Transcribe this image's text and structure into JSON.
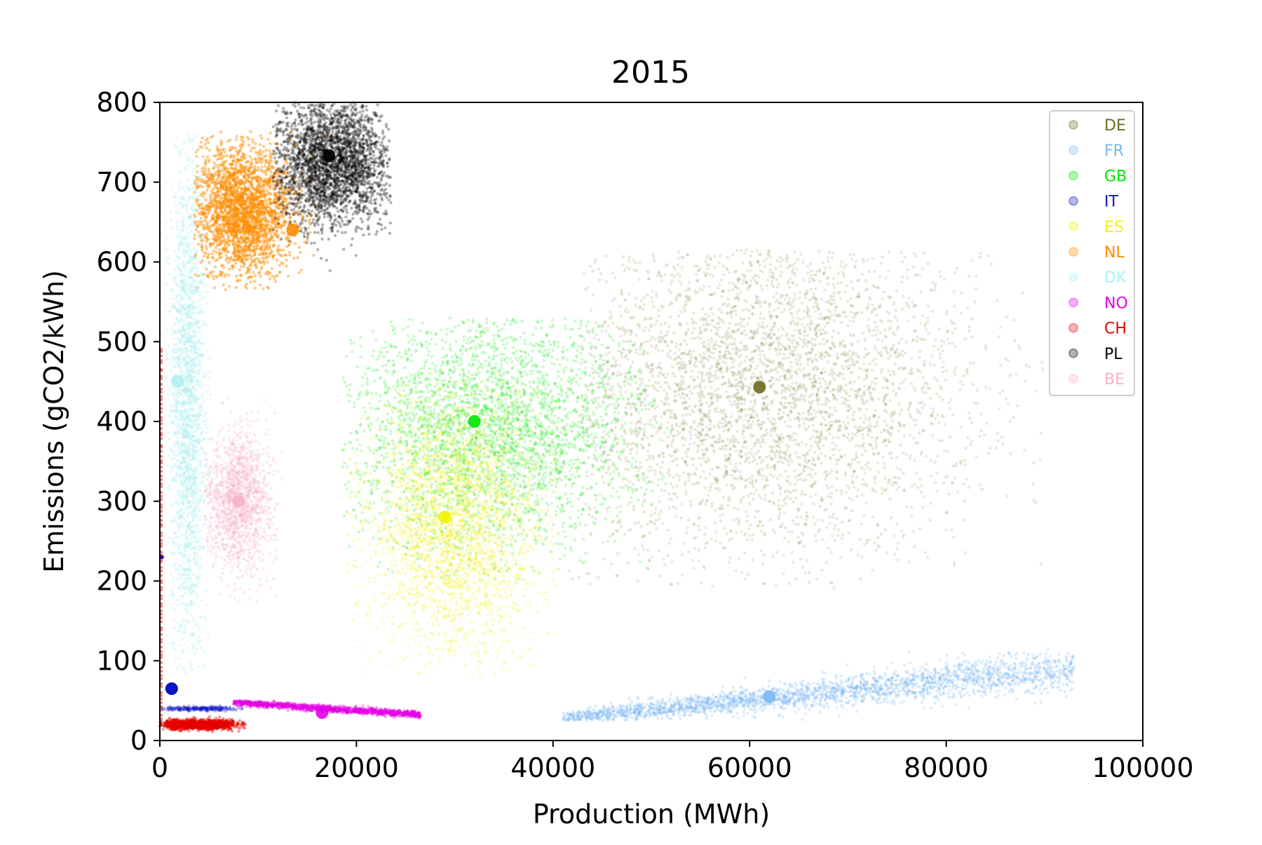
{
  "chart_data": {
    "type": "scatter",
    "title": "2015",
    "xlabel": "Production (MWh)",
    "ylabel": "Emissions (gCO2/kWh)",
    "xlim": [
      0,
      100000
    ],
    "ylim": [
      0,
      800
    ],
    "x_ticks": [
      "0",
      "20000",
      "40000",
      "60000",
      "80000",
      "100000"
    ],
    "y_ticks": [
      "0",
      "100",
      "200",
      "300",
      "400",
      "500",
      "600",
      "700",
      "800"
    ],
    "grid": false,
    "legend_position": "top-right",
    "series": [
      {
        "name": "DE",
        "color": "#6b6b1e",
        "alpha": 0.15,
        "n": 4500,
        "cx": 61000,
        "cy": 440,
        "sx": 11000,
        "sy": 105,
        "xmin": 43000,
        "xmax": 90000,
        "ymin": 190,
        "ymax": 615,
        "mean": [
          61000,
          443
        ],
        "dense": true
      },
      {
        "name": "FR",
        "color": "#7ab8f5",
        "alpha": 0.25,
        "n": 2500,
        "cx": 60000,
        "cy": 50,
        "sx": 9000,
        "sy": 14,
        "xmin": 41000,
        "xmax": 93000,
        "ymin": 25,
        "ymax": 115,
        "mean": [
          62000,
          55
        ],
        "trend": true
      },
      {
        "name": "GB",
        "color": "#00e600",
        "alpha": 0.2,
        "n": 3500,
        "cx": 34000,
        "cy": 390,
        "sx": 7500,
        "sy": 75,
        "xmin": 18500,
        "xmax": 52000,
        "ymin": 200,
        "ymax": 530,
        "mean": [
          32000,
          400
        ]
      },
      {
        "name": "IT",
        "color": "#0a14c8",
        "alpha": 0.25,
        "n": 300,
        "cx": 4000,
        "cy": 40,
        "sx": 2500,
        "sy": 1.5,
        "xmin": 0,
        "xmax": 8500,
        "ymin": 36,
        "ymax": 44,
        "mean": [
          1200,
          65
        ],
        "extra": [
          [
            200,
            230
          ]
        ]
      },
      {
        "name": "ES",
        "color": "#f2f200",
        "alpha": 0.2,
        "n": 3000,
        "cx": 30000,
        "cy": 270,
        "sx": 4500,
        "sy": 80,
        "xmin": 19000,
        "xmax": 40500,
        "ymin": 80,
        "ymax": 470,
        "mean": [
          29000,
          280
        ]
      },
      {
        "name": "NL",
        "color": "#ff8c00",
        "alpha": 0.45,
        "n": 2500,
        "cx": 8500,
        "cy": 665,
        "sx": 2600,
        "sy": 40,
        "xmin": 3500,
        "xmax": 17500,
        "ymin": 565,
        "ymax": 765,
        "mean": [
          13500,
          640
        ]
      },
      {
        "name": "DK",
        "color": "#aef0f0",
        "alpha": 0.3,
        "n": 2000,
        "cx": 2800,
        "cy": 420,
        "sx": 900,
        "sy": 160,
        "xmin": 500,
        "xmax": 5200,
        "ymin": 85,
        "ymax": 760,
        "mean": [
          1800,
          450
        ]
      },
      {
        "name": "NO",
        "color": "#e600e6",
        "alpha": 0.3,
        "n": 1500,
        "cx": 17000,
        "cy": 36,
        "sx": 4500,
        "sy": 3,
        "xmin": 7500,
        "xmax": 26500,
        "ymin": 28,
        "ymax": 50,
        "mean": [
          16500,
          35
        ],
        "trend_no": true
      },
      {
        "name": "CH",
        "color": "#e60000",
        "alpha": 0.4,
        "n": 1200,
        "cx": 4000,
        "cy": 20,
        "sx": 2000,
        "sy": 3,
        "xmin": 0,
        "xmax": 8700,
        "ymin": 10,
        "ymax": 30,
        "mean": [
          1500,
          20
        ],
        "extra_col": true
      },
      {
        "name": "PL",
        "color": "#000000",
        "alpha": 0.3,
        "n": 3000,
        "cx": 17500,
        "cy": 725,
        "sx": 3000,
        "sy": 40,
        "xmin": 11500,
        "xmax": 23500,
        "ymin": 540,
        "ymax": 800,
        "mean": [
          17200,
          733
        ]
      },
      {
        "name": "BE",
        "color": "#f7b3cc",
        "alpha": 0.25,
        "n": 1500,
        "cx": 8000,
        "cy": 300,
        "sx": 1700,
        "sy": 45,
        "xmin": 4500,
        "xmax": 12500,
        "ymin": 160,
        "ymax": 430,
        "mean": [
          8000,
          300
        ]
      }
    ]
  }
}
